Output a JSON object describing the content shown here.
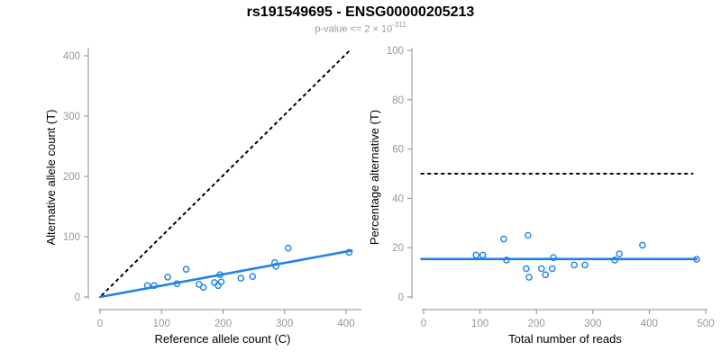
{
  "header": {
    "title": "rs191549695 - ENSG00000205213",
    "subtitle_base": "p-value <= 2 × 10",
    "subtitle_exponent": "-311"
  },
  "colors": {
    "accent_blue": "#1e81e8",
    "line_black": "#000000",
    "axis_gray": "#8c8c8c",
    "tick_text_gray": "#979797",
    "label_black": "#000000",
    "subtitle_gray": "#9b9b9b"
  },
  "chart_data": [
    {
      "type": "scatter",
      "name": "allele-count-scatter",
      "xlabel": "Reference allele count (C)",
      "ylabel": "Alternative allele count (T)",
      "xlim": [
        0,
        400
      ],
      "ylim": [
        0,
        400
      ],
      "xticks": [
        0,
        100,
        200,
        300,
        400
      ],
      "yticks": [
        0,
        100,
        200,
        300,
        400
      ],
      "grid": false,
      "legend": "none",
      "points": [
        [
          77,
          19
        ],
        [
          88,
          19
        ],
        [
          110,
          33
        ],
        [
          125,
          22
        ],
        [
          140,
          46
        ],
        [
          161,
          21
        ],
        [
          168,
          16
        ],
        [
          186,
          24
        ],
        [
          192,
          19
        ],
        [
          195,
          37
        ],
        [
          197,
          25
        ],
        [
          229,
          31
        ],
        [
          248,
          34
        ],
        [
          284,
          57
        ],
        [
          286,
          51
        ],
        [
          306,
          81
        ],
        [
          405,
          74
        ]
      ],
      "lines": [
        {
          "name": "identity-line",
          "style": "dotted",
          "color": "black",
          "x1": 3,
          "y1": 3,
          "x2": 404,
          "y2": 407
        },
        {
          "name": "fit-line",
          "style": "solid",
          "color": "blue",
          "x1": 0,
          "y1": 0,
          "x2": 409,
          "y2": 77
        }
      ]
    },
    {
      "type": "scatter",
      "name": "percentage-alternative-scatter",
      "xlabel": "Total number of reads",
      "ylabel": "Percentage alternative (T)",
      "xlim": [
        0,
        500
      ],
      "ylim": [
        0,
        100
      ],
      "xticks": [
        0,
        100,
        200,
        300,
        400,
        500
      ],
      "yticks": [
        0,
        20,
        40,
        60,
        80,
        100
      ],
      "grid": false,
      "legend": "none",
      "points": [
        [
          93,
          17
        ],
        [
          105,
          17
        ],
        [
          142,
          23.5
        ],
        [
          147,
          15
        ],
        [
          182,
          11.5
        ],
        [
          185,
          25
        ],
        [
          187,
          8
        ],
        [
          209,
          11.5
        ],
        [
          216,
          9
        ],
        [
          228,
          11.5
        ],
        [
          230,
          16
        ],
        [
          267,
          13
        ],
        [
          286,
          13
        ],
        [
          339,
          15
        ],
        [
          347,
          17.5
        ],
        [
          388,
          21
        ],
        [
          484,
          15.3
        ]
      ],
      "lines": [
        {
          "name": "fifty-percent-line",
          "style": "dotted",
          "color": "black",
          "x1": -4,
          "y1": 50,
          "x2": 477,
          "y2": 50
        },
        {
          "name": "fit-line",
          "style": "solid",
          "color": "blue",
          "x1": -4,
          "y1": 15.4,
          "x2": 484,
          "y2": 15.4
        }
      ]
    }
  ]
}
